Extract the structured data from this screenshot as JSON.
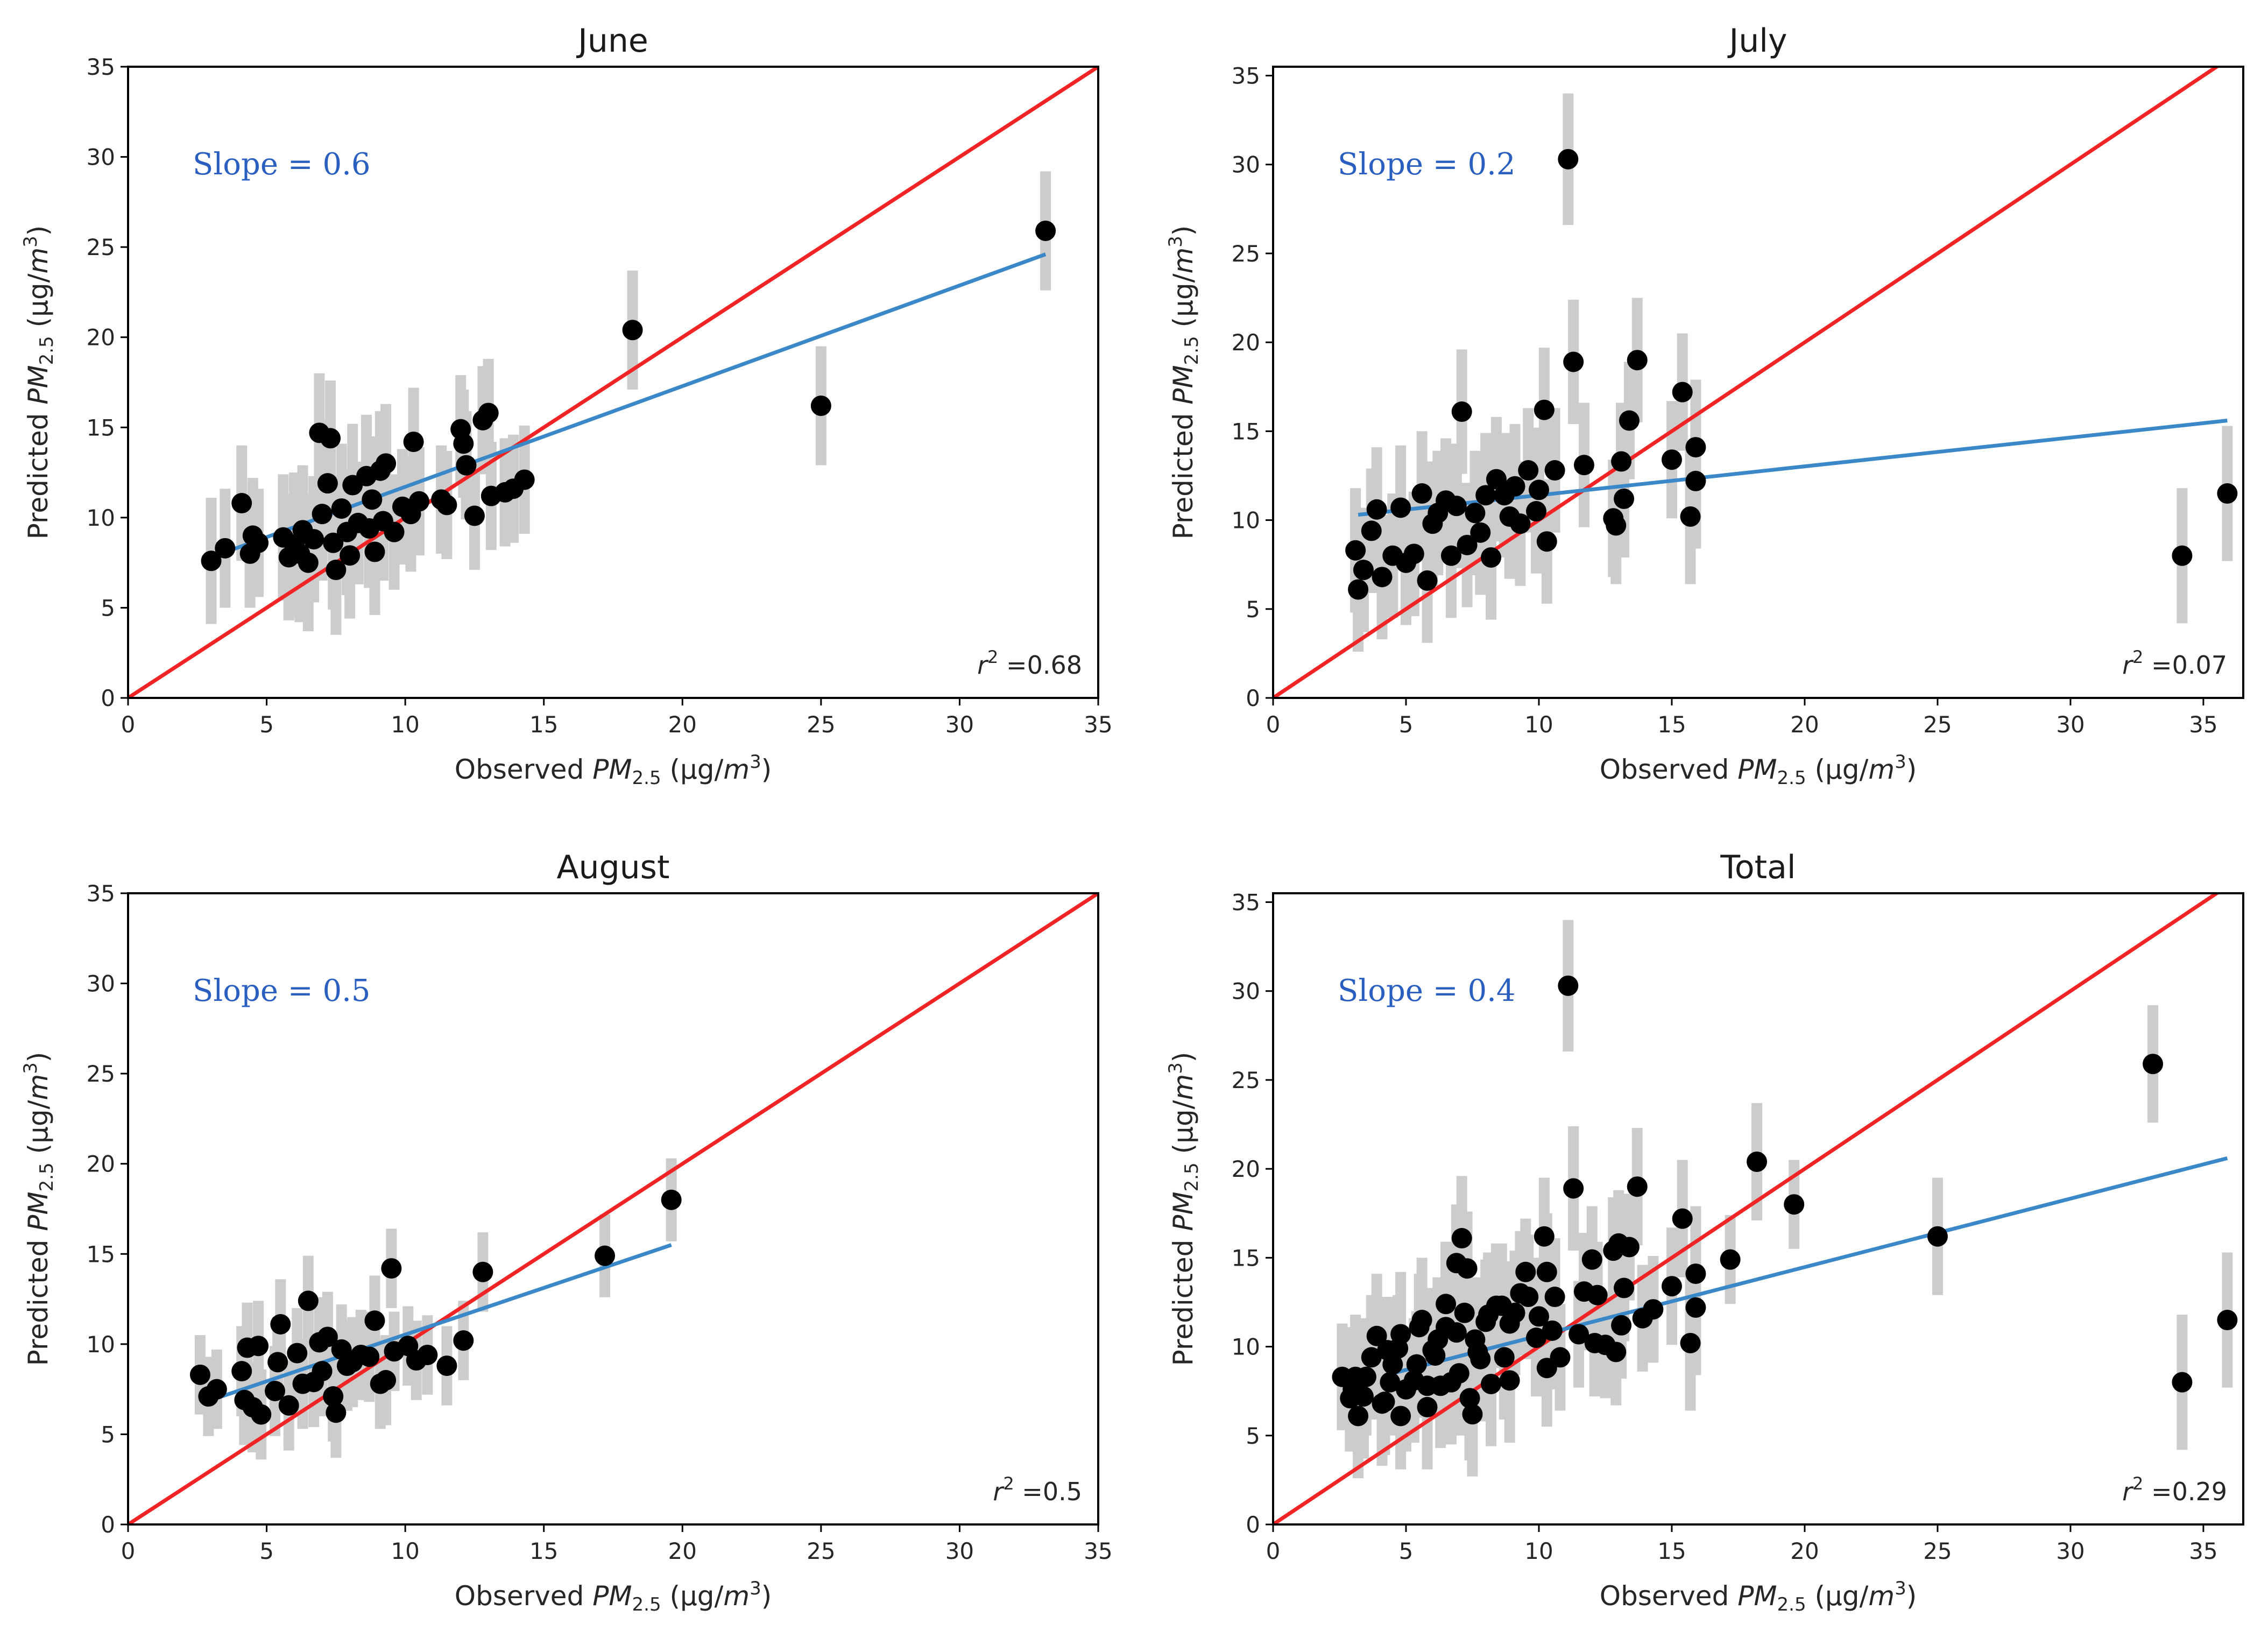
{
  "chart_data": [
    {
      "type": "scatter",
      "title": "June",
      "xlabel": "Observed PM2.5 (µg/m3)",
      "ylabel": "Predicted PM2.5 (µg/m3)",
      "xlim": [
        0,
        35
      ],
      "ylim": [
        0,
        35
      ],
      "xticks": [
        0,
        5,
        10,
        15,
        20,
        25,
        30,
        35
      ],
      "yticks": [
        0,
        5,
        10,
        15,
        20,
        25,
        30,
        35
      ],
      "slope_text": "Slope = 0.6",
      "r2_text": "r2 =0.68",
      "fit": {
        "x": [
          3.0,
          33.1
        ],
        "y": [
          7.8,
          24.6
        ]
      },
      "one_to_one": [
        0,
        35
      ],
      "points": [
        [
          3.0,
          7.6,
          3.5
        ],
        [
          3.5,
          8.3,
          3.3
        ],
        [
          4.1,
          10.8,
          3.2
        ],
        [
          4.4,
          8.0,
          3.0
        ],
        [
          4.5,
          9.0,
          3.2
        ],
        [
          4.7,
          8.6,
          3.0
        ],
        [
          5.6,
          8.9,
          3.5
        ],
        [
          5.8,
          7.8,
          3.5
        ],
        [
          6.0,
          8.5,
          4.0
        ],
        [
          6.2,
          8.0,
          3.8
        ],
        [
          6.3,
          9.3,
          3.6
        ],
        [
          6.5,
          7.5,
          3.8
        ],
        [
          6.7,
          8.8,
          3.5
        ],
        [
          6.9,
          14.7,
          3.3
        ],
        [
          7.0,
          10.2,
          3.7
        ],
        [
          7.2,
          11.9,
          3.5
        ],
        [
          7.3,
          14.4,
          3.2
        ],
        [
          7.4,
          8.6,
          3.7
        ],
        [
          7.5,
          7.1,
          3.6
        ],
        [
          7.7,
          10.5,
          3.6
        ],
        [
          7.9,
          9.2,
          3.5
        ],
        [
          8.0,
          7.9,
          3.5
        ],
        [
          8.1,
          11.8,
          3.4
        ],
        [
          8.3,
          9.7,
          3.4
        ],
        [
          8.6,
          12.3,
          3.4
        ],
        [
          8.7,
          9.4,
          3.3
        ],
        [
          8.8,
          11.0,
          3.5
        ],
        [
          8.9,
          8.1,
          3.5
        ],
        [
          9.1,
          12.6,
          3.3
        ],
        [
          9.2,
          9.8,
          3.3
        ],
        [
          9.3,
          13.0,
          3.3
        ],
        [
          9.6,
          9.2,
          3.2
        ],
        [
          9.9,
          10.6,
          3.2
        ],
        [
          10.2,
          10.2,
          3.2
        ],
        [
          10.3,
          14.2,
          3.0
        ],
        [
          10.5,
          10.9,
          3.0
        ],
        [
          11.3,
          11.0,
          3.0
        ],
        [
          11.5,
          10.7,
          3.0
        ],
        [
          12.0,
          14.9,
          3.0
        ],
        [
          12.1,
          14.1,
          3.0
        ],
        [
          12.2,
          12.9,
          3.0
        ],
        [
          12.5,
          10.1,
          3.0
        ],
        [
          12.8,
          15.4,
          3.0
        ],
        [
          13.0,
          15.8,
          3.0
        ],
        [
          13.1,
          11.2,
          3.0
        ],
        [
          13.6,
          11.4,
          3.0
        ],
        [
          13.9,
          11.6,
          3.0
        ],
        [
          14.3,
          12.1,
          3.0
        ],
        [
          18.2,
          20.4,
          3.3
        ],
        [
          25.0,
          16.2,
          3.3
        ],
        [
          33.1,
          25.9,
          3.3
        ]
      ]
    },
    {
      "type": "scatter",
      "title": "July",
      "xlabel": "Observed PM2.5 (µg/m3)",
      "ylabel": "Predicted PM2.5 (µg/m3)",
      "xlim": [
        0,
        36.5
      ],
      "ylim": [
        0,
        35.5
      ],
      "xticks": [
        0,
        5,
        10,
        15,
        20,
        25,
        30,
        35
      ],
      "yticks": [
        0,
        5,
        10,
        15,
        20,
        25,
        30,
        35
      ],
      "slope_text": "Slope = 0.2",
      "r2_text": "r2 =0.07",
      "fit": {
        "x": [
          3.2,
          35.9
        ],
        "y": [
          10.3,
          15.6
        ]
      },
      "one_to_one": [
        0,
        36.5
      ],
      "points": [
        [
          3.1,
          8.3,
          3.5
        ],
        [
          3.2,
          6.1,
          3.5
        ],
        [
          3.4,
          7.2,
          3.5
        ],
        [
          3.7,
          9.4,
          3.5
        ],
        [
          3.9,
          10.6,
          3.5
        ],
        [
          4.1,
          6.8,
          3.5
        ],
        [
          4.5,
          8.0,
          3.5
        ],
        [
          4.8,
          10.7,
          3.5
        ],
        [
          5.0,
          7.6,
          3.5
        ],
        [
          5.3,
          8.1,
          3.5
        ],
        [
          5.6,
          11.5,
          3.5
        ],
        [
          5.8,
          6.6,
          3.5
        ],
        [
          6.0,
          9.8,
          3.5
        ],
        [
          6.2,
          10.4,
          3.5
        ],
        [
          6.5,
          11.1,
          3.5
        ],
        [
          6.7,
          8.0,
          3.5
        ],
        [
          6.9,
          10.8,
          3.5
        ],
        [
          7.1,
          16.1,
          3.5
        ],
        [
          7.3,
          8.6,
          3.5
        ],
        [
          7.6,
          10.4,
          3.5
        ],
        [
          7.8,
          9.3,
          3.5
        ],
        [
          8.0,
          11.4,
          3.5
        ],
        [
          8.2,
          7.9,
          3.5
        ],
        [
          8.4,
          12.3,
          3.5
        ],
        [
          8.7,
          11.4,
          3.5
        ],
        [
          8.9,
          10.2,
          3.5
        ],
        [
          9.1,
          11.9,
          3.5
        ],
        [
          9.3,
          9.8,
          3.5
        ],
        [
          9.6,
          12.8,
          3.5
        ],
        [
          9.9,
          10.5,
          3.5
        ],
        [
          10.0,
          11.7,
          3.5
        ],
        [
          10.2,
          16.2,
          3.5
        ],
        [
          10.3,
          8.8,
          3.5
        ],
        [
          10.6,
          12.8,
          3.5
        ],
        [
          11.1,
          30.3,
          3.7
        ],
        [
          11.3,
          18.9,
          3.5
        ],
        [
          11.7,
          13.1,
          3.5
        ],
        [
          12.8,
          10.1,
          3.3
        ],
        [
          12.9,
          9.7,
          3.3
        ],
        [
          13.1,
          13.3,
          3.3
        ],
        [
          13.2,
          11.2,
          3.3
        ],
        [
          13.4,
          15.6,
          3.3
        ],
        [
          13.7,
          19.0,
          3.5
        ],
        [
          15.0,
          13.4,
          3.3
        ],
        [
          15.4,
          17.2,
          3.3
        ],
        [
          15.7,
          10.2,
          3.8
        ],
        [
          15.9,
          14.1,
          3.8
        ],
        [
          15.9,
          12.2,
          3.8
        ],
        [
          34.2,
          8.0,
          3.8
        ],
        [
          35.9,
          11.5,
          3.8
        ]
      ]
    },
    {
      "type": "scatter",
      "title": "August",
      "xlabel": "Observed PM2.5 (µg/m3)",
      "ylabel": "Predicted PM2.5 (µg/m3)",
      "xlim": [
        0,
        35
      ],
      "ylim": [
        0,
        35
      ],
      "xticks": [
        0,
        5,
        10,
        15,
        20,
        25,
        30,
        35
      ],
      "yticks": [
        0,
        5,
        10,
        15,
        20,
        25,
        30,
        35
      ],
      "slope_text": "Slope = 0.5",
      "r2_text": "r2 =0.5",
      "fit": {
        "x": [
          2.8,
          19.6
        ],
        "y": [
          6.8,
          15.5
        ]
      },
      "one_to_one": [
        0,
        35
      ],
      "points": [
        [
          2.6,
          8.3,
          2.2
        ],
        [
          2.9,
          7.1,
          2.2
        ],
        [
          3.2,
          7.5,
          2.2
        ],
        [
          4.1,
          8.5,
          2.5
        ],
        [
          4.2,
          6.9,
          2.5
        ],
        [
          4.3,
          9.8,
          2.5
        ],
        [
          4.5,
          6.5,
          2.5
        ],
        [
          4.7,
          9.9,
          2.5
        ],
        [
          4.8,
          6.1,
          2.5
        ],
        [
          5.3,
          7.4,
          2.5
        ],
        [
          5.4,
          9.0,
          2.5
        ],
        [
          5.5,
          11.1,
          2.5
        ],
        [
          5.8,
          6.6,
          2.5
        ],
        [
          6.1,
          9.5,
          2.5
        ],
        [
          6.3,
          7.8,
          2.5
        ],
        [
          6.5,
          12.4,
          2.5
        ],
        [
          6.7,
          7.9,
          2.5
        ],
        [
          6.9,
          10.1,
          2.5
        ],
        [
          7.0,
          8.5,
          2.5
        ],
        [
          7.2,
          10.4,
          2.5
        ],
        [
          7.4,
          7.1,
          2.5
        ],
        [
          7.5,
          6.2,
          2.5
        ],
        [
          7.7,
          9.7,
          2.5
        ],
        [
          7.9,
          8.8,
          2.5
        ],
        [
          8.1,
          9.0,
          2.5
        ],
        [
          8.4,
          9.4,
          2.5
        ],
        [
          8.7,
          9.3,
          2.5
        ],
        [
          8.9,
          11.3,
          2.5
        ],
        [
          9.1,
          7.8,
          2.5
        ],
        [
          9.3,
          8.0,
          2.5
        ],
        [
          9.5,
          14.2,
          2.2
        ],
        [
          9.6,
          9.6,
          2.2
        ],
        [
          10.1,
          9.9,
          2.2
        ],
        [
          10.4,
          9.1,
          2.2
        ],
        [
          10.8,
          9.4,
          2.2
        ],
        [
          11.5,
          8.8,
          2.2
        ],
        [
          12.1,
          10.2,
          2.2
        ],
        [
          12.8,
          14.0,
          2.2
        ],
        [
          17.2,
          14.9,
          2.3
        ],
        [
          19.6,
          18.0,
          2.3
        ]
      ]
    },
    {
      "type": "scatter",
      "title": "Total",
      "xlabel": "Observed PM2.5 (µg/m3)",
      "ylabel": "Predicted PM2.5 (µg/m3)",
      "xlim": [
        0,
        36.5
      ],
      "ylim": [
        0,
        35.5
      ],
      "xticks": [
        0,
        5,
        10,
        15,
        20,
        25,
        30,
        35
      ],
      "yticks": [
        0,
        5,
        10,
        15,
        20,
        25,
        30,
        35
      ],
      "slope_text": "Slope = 0.4",
      "r2_text": "r2 =0.29",
      "fit": {
        "x": [
          4.5,
          35.9
        ],
        "y": [
          8.5,
          20.6
        ]
      },
      "one_to_one": [
        0,
        36.5
      ],
      "points": [
        [
          2.6,
          8.3,
          3.0
        ],
        [
          2.9,
          7.1,
          3.0
        ],
        [
          3.0,
          7.6,
          3.5
        ],
        [
          3.1,
          8.3,
          3.5
        ],
        [
          3.2,
          6.1,
          3.5
        ],
        [
          3.4,
          7.2,
          3.5
        ],
        [
          3.5,
          8.3,
          3.3
        ],
        [
          3.7,
          9.4,
          3.5
        ],
        [
          3.9,
          10.6,
          3.5
        ],
        [
          4.1,
          6.8,
          3.5
        ],
        [
          4.2,
          6.9,
          3.0
        ],
        [
          4.3,
          9.8,
          3.0
        ],
        [
          4.4,
          8.0,
          3.0
        ],
        [
          4.5,
          9.0,
          3.2
        ],
        [
          4.7,
          9.9,
          3.0
        ],
        [
          4.8,
          6.1,
          3.0
        ],
        [
          4.8,
          10.7,
          3.5
        ],
        [
          5.0,
          7.6,
          3.5
        ],
        [
          5.3,
          8.1,
          3.5
        ],
        [
          5.4,
          9.0,
          3.0
        ],
        [
          5.5,
          11.1,
          3.0
        ],
        [
          5.6,
          11.5,
          3.5
        ],
        [
          5.8,
          6.6,
          3.5
        ],
        [
          5.8,
          7.8,
          3.5
        ],
        [
          6.0,
          9.8,
          3.5
        ],
        [
          6.1,
          9.5,
          3.0
        ],
        [
          6.2,
          10.4,
          3.5
        ],
        [
          6.3,
          7.8,
          3.5
        ],
        [
          6.5,
          12.4,
          3.5
        ],
        [
          6.5,
          11.1,
          3.5
        ],
        [
          6.7,
          8.0,
          3.5
        ],
        [
          6.9,
          10.8,
          3.5
        ],
        [
          6.9,
          14.7,
          3.3
        ],
        [
          7.0,
          8.5,
          3.5
        ],
        [
          7.1,
          16.1,
          3.5
        ],
        [
          7.2,
          11.9,
          3.5
        ],
        [
          7.3,
          14.4,
          3.2
        ],
        [
          7.4,
          7.1,
          3.5
        ],
        [
          7.5,
          6.2,
          3.5
        ],
        [
          7.6,
          10.4,
          3.5
        ],
        [
          7.7,
          9.7,
          3.5
        ],
        [
          7.8,
          9.3,
          3.5
        ],
        [
          8.0,
          11.4,
          3.5
        ],
        [
          8.1,
          11.8,
          3.5
        ],
        [
          8.2,
          7.9,
          3.5
        ],
        [
          8.4,
          12.3,
          3.5
        ],
        [
          8.6,
          12.3,
          3.5
        ],
        [
          8.7,
          9.4,
          3.5
        ],
        [
          8.9,
          11.3,
          3.5
        ],
        [
          8.9,
          8.1,
          3.5
        ],
        [
          9.1,
          11.9,
          3.5
        ],
        [
          9.3,
          13.0,
          3.5
        ],
        [
          9.5,
          14.2,
          3.0
        ],
        [
          9.6,
          12.8,
          3.5
        ],
        [
          9.9,
          10.5,
          3.3
        ],
        [
          10.0,
          11.7,
          3.3
        ],
        [
          10.2,
          16.2,
          3.3
        ],
        [
          10.3,
          14.2,
          3.3
        ],
        [
          10.3,
          8.8,
          3.3
        ],
        [
          10.5,
          10.9,
          3.3
        ],
        [
          10.6,
          12.8,
          3.3
        ],
        [
          10.8,
          9.4,
          3.0
        ],
        [
          11.1,
          30.3,
          3.7
        ],
        [
          11.3,
          18.9,
          3.5
        ],
        [
          11.5,
          10.7,
          3.0
        ],
        [
          11.7,
          13.1,
          3.3
        ],
        [
          12.0,
          14.9,
          3.0
        ],
        [
          12.1,
          10.2,
          3.0
        ],
        [
          12.2,
          12.9,
          3.0
        ],
        [
          12.5,
          10.1,
          3.0
        ],
        [
          12.8,
          15.4,
          3.0
        ],
        [
          12.9,
          9.7,
          3.0
        ],
        [
          13.0,
          15.8,
          3.0
        ],
        [
          13.1,
          11.2,
          3.0
        ],
        [
          13.2,
          13.3,
          3.0
        ],
        [
          13.4,
          15.6,
          3.0
        ],
        [
          13.7,
          19.0,
          3.3
        ],
        [
          13.9,
          11.6,
          3.0
        ],
        [
          14.3,
          12.1,
          3.0
        ],
        [
          15.0,
          13.4,
          3.3
        ],
        [
          15.4,
          17.2,
          3.3
        ],
        [
          15.7,
          10.2,
          3.8
        ],
        [
          15.9,
          14.1,
          3.8
        ],
        [
          15.9,
          12.2,
          3.8
        ],
        [
          17.2,
          14.9,
          2.5
        ],
        [
          18.2,
          20.4,
          3.3
        ],
        [
          19.6,
          18.0,
          2.5
        ],
        [
          25.0,
          16.2,
          3.3
        ],
        [
          33.1,
          25.9,
          3.3
        ],
        [
          34.2,
          8.0,
          3.8
        ],
        [
          35.9,
          11.5,
          3.8
        ]
      ]
    }
  ],
  "colors": {
    "one_to_one": "#f02424",
    "fit": "#3a88c8",
    "marker": "#000000",
    "error_bar": "#cccccc",
    "slope_text": "#2a5fc0"
  }
}
